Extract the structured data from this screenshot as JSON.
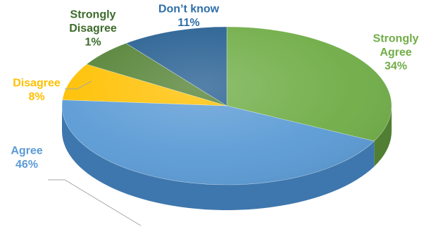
{
  "chart_data": {
    "type": "pie",
    "style": "3d",
    "title": "",
    "slices": [
      {
        "label_lines": [
          "Strongly",
          "Agree"
        ],
        "pct_label": "34%",
        "value": 34,
        "color": "#70AD47",
        "side_color": "#507E32",
        "label_color": "#70AD47"
      },
      {
        "label_lines": [
          "Agree"
        ],
        "pct_label": "46%",
        "value": 46,
        "color": "#5B9BD5",
        "side_color": "#3E77AD",
        "label_color": "#5B9BD5"
      },
      {
        "label_lines": [
          "Disagree"
        ],
        "pct_label": "8%",
        "value": 8,
        "color": "#FFC000",
        "side_color": "#C79600",
        "label_color": "#FFC000"
      },
      {
        "label_lines": [
          "Strongly",
          "Disagree"
        ],
        "pct_label": "1%",
        "value": 1,
        "color": "#548235",
        "side_color": "#3A5C24",
        "label_color": "#3D6B2B"
      },
      {
        "label_lines": [
          "Don’t know"
        ],
        "pct_label": "11%",
        "value": 11,
        "color": "#255E91",
        "side_color": "#1A456B",
        "label_color": "#2E6FA8"
      }
    ],
    "legend": "none",
    "data_labels": "outside-with-leader-lines"
  }
}
